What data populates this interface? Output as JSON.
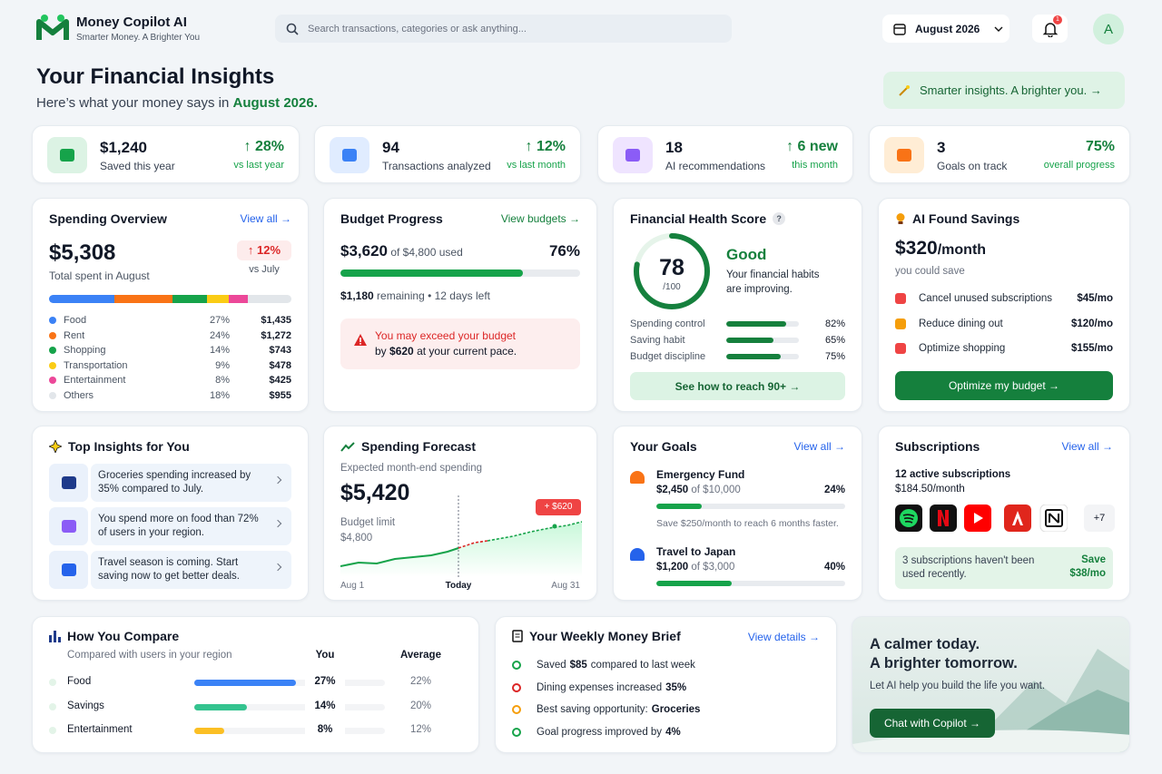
{
  "header": {
    "app_name": "Money Copilot AI",
    "tagline": "Smarter Money. A Brighter You",
    "search_placeholder": "Search transactions, categories or ask anything...",
    "month": "August 2026",
    "notifications": "1",
    "avatar": "A"
  },
  "hero": {
    "title": "Your Financial Insights",
    "subtitle_prefix": "Here’s what your money says in",
    "subtitle_month": "August 2026.",
    "cta": "Smarter insights. A brighter you.  →"
  },
  "stats": [
    {
      "value": "$1,240",
      "label": "Saved this year",
      "change": "↑ 28%",
      "change_label": "vs last year"
    },
    {
      "value": "94",
      "label": "Transactions analyzed",
      "change": "↑ 12%",
      "change_label": "vs last month"
    },
    {
      "value": "18",
      "label": "AI recommendations",
      "change": "↑ 6 new",
      "change_label": "this month"
    },
    {
      "value": "3",
      "label": "Goals on track",
      "change": "75%",
      "change_label": "overall progress"
    }
  ],
  "spending_overview": {
    "title": "Spending Overview",
    "link": "View all →",
    "total": "$5,308",
    "total_label": "Total spent in August",
    "change": "↑ 12%",
    "change_label": "vs July",
    "categories": [
      {
        "name": "Food",
        "share": "27%",
        "amount": "$1,435",
        "color": "#3b82f6"
      },
      {
        "name": "Rent",
        "share": "24%",
        "amount": "$1,272",
        "color": "#f97316"
      },
      {
        "name": "Shopping",
        "share": "14%",
        "amount": "$743",
        "color": "#16a34a"
      },
      {
        "name": "Transportation",
        "share": "9%",
        "amount": "$478",
        "color": "#facc15"
      },
      {
        "name": "Entertainment",
        "share": "8%",
        "amount": "$425",
        "color": "#ec4899"
      },
      {
        "name": "Others",
        "share": "18%",
        "amount": "$955",
        "color": "#e2e6ea"
      }
    ]
  },
  "budget": {
    "title": "Budget Progress",
    "link": "View budgets →",
    "used": "$3,620",
    "of_text": "of $4,800 used",
    "percent": "76%",
    "remaining": "$1,180",
    "remaining_text": "remaining • 12 days left",
    "warning_title": "You may exceed your budget",
    "warning_prefix": "by",
    "warning_amount": "$620",
    "warning_suffix": "at your current pace."
  },
  "health": {
    "title": "Financial Health Score",
    "help": "?",
    "score": "78",
    "score_max": "/100",
    "rating": "Good",
    "message": "Your financial habits are improving.",
    "metrics": [
      {
        "name": "Spending control",
        "value": "82%"
      },
      {
        "name": "Saving habit",
        "value": "65%"
      },
      {
        "name": "Budget discipline",
        "value": "75%"
      }
    ],
    "cta": "See how to reach 90+ →"
  },
  "savings": {
    "title": "AI Found Savings",
    "amount": "$320",
    "period": "/month",
    "subtitle": "you could save",
    "items": [
      {
        "label": "Cancel unused subscriptions",
        "amount": "$45/mo"
      },
      {
        "label": "Reduce dining out",
        "amount": "$120/mo"
      },
      {
        "label": "Optimize shopping",
        "amount": "$155/mo"
      }
    ],
    "cta": "Optimize my budget →"
  },
  "insights": {
    "title": "Top Insights for You",
    "items": [
      "Groceries spending increased by 35% compared to July.",
      "You spend more on food than 72% of users in your region.",
      "Travel season is coming. Start saving now to get better deals."
    ]
  },
  "forecast": {
    "title": "Spending Forecast",
    "subtitle": "Expected month-end spending",
    "amount": "$5,420",
    "limit_label": "Budget limit",
    "limit": "$4,800",
    "overage": "+ $620",
    "x_labels": [
      "Aug 1",
      "Today",
      "Aug 31"
    ]
  },
  "goals": {
    "title": "Your Goals",
    "link": "View all →",
    "items": [
      {
        "name": "Emergency Fund",
        "saved": "$2,450",
        "target_text": "of $10,000",
        "percent": "24%",
        "note": "Save $250/month to reach 6 months faster."
      },
      {
        "name": "Travel to Japan",
        "saved": "$1,200",
        "target_text": "of $3,000",
        "percent": "40%"
      }
    ]
  },
  "subscriptions": {
    "title": "Subscriptions",
    "link": "View all →",
    "count_text": "12 active subscriptions",
    "monthly": "$184.50/month",
    "more": "+7",
    "notice": "3 subscriptions haven't been used recently.",
    "save_label": "Save",
    "save_amount": "$38/mo"
  },
  "compare": {
    "title": "How You Compare",
    "subtitle": "Compared with users in your region",
    "col_you": "You",
    "col_avg": "Average",
    "rows": [
      {
        "name": "Food",
        "you": "27%",
        "avg": "22%",
        "color": "#3b82f6"
      },
      {
        "name": "Savings",
        "you": "14%",
        "avg": "20%",
        "color": "#34c38f"
      },
      {
        "name": "Entertainment",
        "you": "8%",
        "avg": "12%",
        "color": "#fbbf24"
      }
    ]
  },
  "brief": {
    "title": "Your Weekly Money Brief",
    "link": "View details →",
    "items": [
      {
        "prefix": "Saved",
        "strong": "$85",
        "suffix": "compared to last week"
      },
      {
        "prefix": "Dining expenses increased",
        "strong": "35%"
      },
      {
        "prefix": "Best saving opportunity:",
        "strong": "Groceries"
      },
      {
        "prefix": "Goal progress improved by",
        "strong": "4%"
      }
    ]
  },
  "promo": {
    "title_line1": "A calmer today.",
    "title_line2": "A brighter tomorrow.",
    "text": "Let AI help you build the life you want.",
    "cta": "Chat with Copilot →"
  }
}
